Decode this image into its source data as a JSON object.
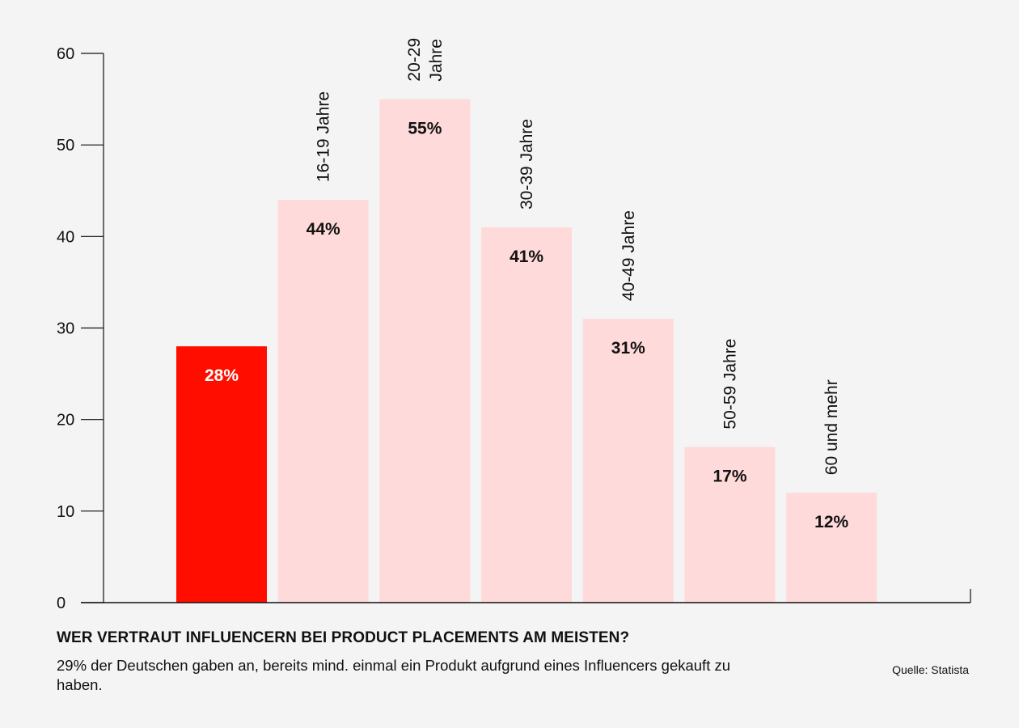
{
  "chart_data": {
    "type": "bar",
    "categories": [
      "",
      "16-19 Jahre",
      "20-29 Jahre",
      "30-39 Jahre",
      "40-49 Jahre",
      "50-59 Jahre",
      "60 und mehr"
    ],
    "category_lines": [
      [],
      [
        "16-19 Jahre"
      ],
      [
        "20-29",
        "Jahre"
      ],
      [
        "30-39 Jahre"
      ],
      [
        "40-49 Jahre"
      ],
      [
        "50-59 Jahre"
      ],
      [
        "60 und mehr"
      ]
    ],
    "values": [
      28,
      44,
      55,
      41,
      31,
      17,
      12
    ],
    "value_labels": [
      "28%",
      "44%",
      "55%",
      "41%",
      "31%",
      "17%",
      "12%"
    ],
    "yticks": [
      "0",
      "10",
      "20",
      "30",
      "40",
      "50",
      "60"
    ],
    "ylim": [
      0,
      60
    ],
    "grid": false,
    "highlight_index": 0,
    "colors": {
      "highlight_bar": "#ff0e00",
      "bar": "#ffdada",
      "highlight_label": "#ffffff",
      "label": "#111111",
      "axis": "#111111"
    },
    "title": "WER VERTRAUT INFLUENCERN BEI PRODUCT PLACEMENTS AM MEISTEN?",
    "subtitle": "29% der Deutschen gaben an, bereits mind. einmal ein Produkt aufgrund eines Influencers gekauft zu haben.",
    "source": "Quelle: Statista"
  }
}
